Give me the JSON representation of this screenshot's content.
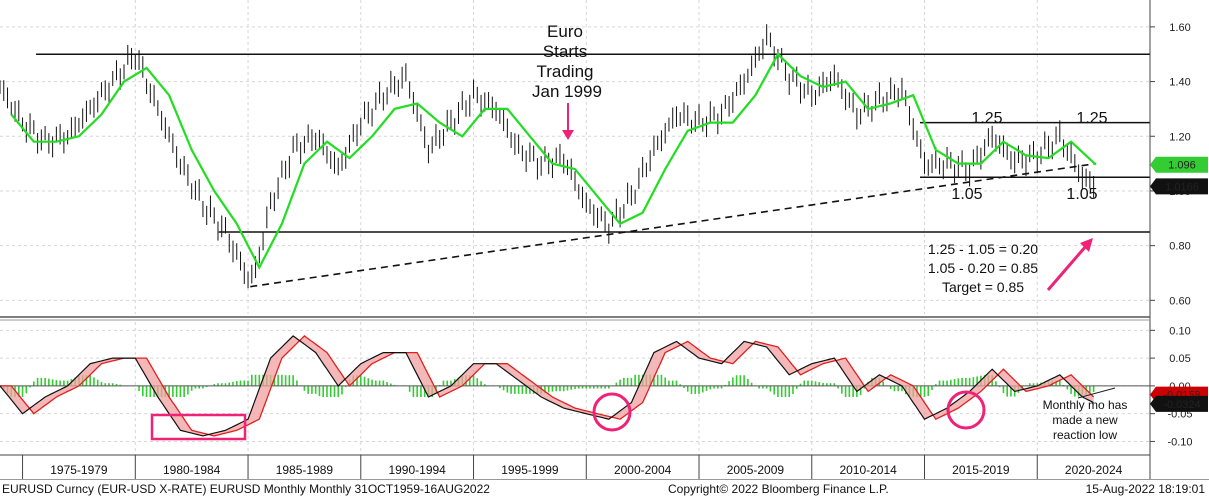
{
  "chart_data": [
    {
      "type": "line",
      "name": "EURUSD monthly bars with moving average",
      "ylim": [
        0.55,
        1.68
      ],
      "ytick_labels": [
        "0.60",
        "0.80",
        "1.00",
        "1.20",
        "1.40",
        "1.60"
      ],
      "x_period_labels": [
        "1975-1979",
        "1980-1984",
        "1985-1989",
        "1990-1994",
        "1995-1999",
        "2000-2004",
        "2005-2009",
        "2010-2014",
        "2015-2019",
        "2020-2024"
      ],
      "series_price": [
        [
          1974,
          1.38
        ],
        [
          1975,
          1.25
        ],
        [
          1976,
          1.18
        ],
        [
          1977,
          1.2
        ],
        [
          1978,
          1.3
        ],
        [
          1979,
          1.4
        ],
        [
          1980,
          1.5
        ],
        [
          1981,
          1.3
        ],
        [
          1982,
          1.1
        ],
        [
          1983,
          0.95
        ],
        [
          1984,
          0.85
        ],
        [
          1985,
          0.68
        ],
        [
          1985.3,
          0.7
        ],
        [
          1986,
          0.95
        ],
        [
          1987,
          1.15
        ],
        [
          1988,
          1.2
        ],
        [
          1989,
          1.08
        ],
        [
          1990,
          1.25
        ],
        [
          1991,
          1.35
        ],
        [
          1992,
          1.42
        ],
        [
          1993,
          1.15
        ],
        [
          1994,
          1.25
        ],
        [
          1995,
          1.35
        ],
        [
          1996,
          1.3
        ],
        [
          1997,
          1.15
        ],
        [
          1998,
          1.1
        ],
        [
          1999,
          1.12
        ],
        [
          2000,
          0.95
        ],
        [
          2001,
          0.87
        ],
        [
          2002,
          0.98
        ],
        [
          2003,
          1.15
        ],
        [
          2004,
          1.28
        ],
        [
          2005,
          1.25
        ],
        [
          2006,
          1.28
        ],
        [
          2007,
          1.4
        ],
        [
          2008,
          1.56
        ],
        [
          2009,
          1.42
        ],
        [
          2010,
          1.35
        ],
        [
          2011,
          1.42
        ],
        [
          2012,
          1.28
        ],
        [
          2013,
          1.33
        ],
        [
          2014,
          1.37
        ],
        [
          2015,
          1.1
        ],
        [
          2016,
          1.1
        ],
        [
          2017,
          1.08
        ],
        [
          2018,
          1.2
        ],
        [
          2019,
          1.11
        ],
        [
          2020,
          1.13
        ],
        [
          2021,
          1.2
        ],
        [
          2022,
          1.05
        ],
        [
          2022.6,
          1.02
        ]
      ],
      "series_ma": [
        [
          1974.5,
          1.28
        ],
        [
          1975.5,
          1.18
        ],
        [
          1976.5,
          1.18
        ],
        [
          1977.5,
          1.2
        ],
        [
          1978.5,
          1.28
        ],
        [
          1979.5,
          1.4
        ],
        [
          1980.5,
          1.45
        ],
        [
          1981.5,
          1.35
        ],
        [
          1982.5,
          1.15
        ],
        [
          1983.5,
          1.0
        ],
        [
          1984.5,
          0.88
        ],
        [
          1985.5,
          0.72
        ],
        [
          1986.5,
          0.88
        ],
        [
          1987.5,
          1.1
        ],
        [
          1988.5,
          1.18
        ],
        [
          1989.5,
          1.12
        ],
        [
          1990.5,
          1.2
        ],
        [
          1991.5,
          1.3
        ],
        [
          1992.5,
          1.32
        ],
        [
          1993.5,
          1.25
        ],
        [
          1994.5,
          1.2
        ],
        [
          1995.5,
          1.3
        ],
        [
          1996.5,
          1.3
        ],
        [
          1997.5,
          1.2
        ],
        [
          1998.5,
          1.1
        ],
        [
          1999.5,
          1.08
        ],
        [
          2000.5,
          0.98
        ],
        [
          2001.5,
          0.88
        ],
        [
          2002.5,
          0.92
        ],
        [
          2003.5,
          1.08
        ],
        [
          2004.5,
          1.22
        ],
        [
          2005.5,
          1.25
        ],
        [
          2006.5,
          1.25
        ],
        [
          2007.5,
          1.35
        ],
        [
          2008.5,
          1.5
        ],
        [
          2009.5,
          1.42
        ],
        [
          2010.5,
          1.38
        ],
        [
          2011.5,
          1.4
        ],
        [
          2012.5,
          1.3
        ],
        [
          2013.5,
          1.32
        ],
        [
          2014.5,
          1.35
        ],
        [
          2015.5,
          1.15
        ],
        [
          2016.5,
          1.1
        ],
        [
          2017.5,
          1.1
        ],
        [
          2018.5,
          1.18
        ],
        [
          2019.5,
          1.13
        ],
        [
          2020.5,
          1.12
        ],
        [
          2021.5,
          1.18
        ],
        [
          2022.6,
          1.096
        ]
      ],
      "levels": [
        1.5,
        1.25,
        1.05,
        0.85
      ],
      "support_trendline": [
        [
          1985.1,
          0.65
        ],
        [
          2022.6,
          1.1
        ]
      ],
      "last_price_tags": [
        {
          "value": 1.096,
          "label": "1.096",
          "color": "#33cc33"
        },
        {
          "value": 1.0166,
          "label": "1.0166",
          "color": "#111111"
        }
      ],
      "annotations": {
        "euro_line1": "Euro",
        "euro_line2": "Starts",
        "euro_line3": "Trading",
        "euro_line4": "Jan 1999",
        "level_125_a": "1.25",
        "level_125_b": "1.25",
        "level_105_a": "1.05",
        "level_105_b": "1.05",
        "calc_line1": "1.25  -  1.05 = 0.20",
        "calc_line2": "1.05  -  0.20 = 0.85",
        "calc_line3": "Target = 0.85"
      }
    },
    {
      "type": "line",
      "name": "Monthly momentum oscillator",
      "ylim": [
        -0.11,
        0.115
      ],
      "ytick_labels": [
        "0.10",
        "0.05",
        "0.00",
        "-0.05",
        "-0.10"
      ],
      "series_mo": [
        [
          1974,
          0.0
        ],
        [
          1975,
          -0.05
        ],
        [
          1976,
          -0.02
        ],
        [
          1977,
          0.0
        ],
        [
          1978,
          0.04
        ],
        [
          1979,
          0.05
        ],
        [
          1980,
          0.05
        ],
        [
          1981,
          -0.02
        ],
        [
          1982,
          -0.08
        ],
        [
          1983,
          -0.09
        ],
        [
          1984,
          -0.08
        ],
        [
          1985,
          -0.06
        ],
        [
          1986,
          0.05
        ],
        [
          1987,
          0.09
        ],
        [
          1988,
          0.06
        ],
        [
          1989,
          0.0
        ],
        [
          1990,
          0.04
        ],
        [
          1991,
          0.06
        ],
        [
          1992,
          0.06
        ],
        [
          1993,
          -0.02
        ],
        [
          1994,
          0.0
        ],
        [
          1995,
          0.04
        ],
        [
          1996,
          0.04
        ],
        [
          1997,
          0.01
        ],
        [
          1998,
          -0.02
        ],
        [
          1999,
          -0.04
        ],
        [
          2000,
          -0.05
        ],
        [
          2001,
          -0.06
        ],
        [
          2002,
          -0.03
        ],
        [
          2003,
          0.06
        ],
        [
          2004,
          0.08
        ],
        [
          2005,
          0.05
        ],
        [
          2006,
          0.04
        ],
        [
          2007,
          0.08
        ],
        [
          2008,
          0.07
        ],
        [
          2009,
          0.02
        ],
        [
          2010,
          0.04
        ],
        [
          2011,
          0.05
        ],
        [
          2012,
          -0.01
        ],
        [
          2013,
          0.02
        ],
        [
          2014,
          0.0
        ],
        [
          2015,
          -0.06
        ],
        [
          2016,
          -0.04
        ],
        [
          2017,
          -0.01
        ],
        [
          2018,
          0.03
        ],
        [
          2019,
          -0.01
        ],
        [
          2020,
          0.0
        ],
        [
          2021,
          0.02
        ],
        [
          2022,
          -0.02
        ],
        [
          2022.6,
          -0.032
        ]
      ],
      "last_price_tags": [
        {
          "value": -0.0158,
          "label": "-0.0158",
          "color": "#cc0000"
        },
        {
          "value": -0.0324,
          "label": "-0.0324",
          "color": "#111111"
        }
      ],
      "annotations": {
        "note_line1": "Monthly mo has",
        "note_line2": "made a new",
        "note_line3": "reaction low"
      }
    }
  ],
  "footer": {
    "left": "EURUSD Curncy (EUR-USD X-RATE) EURUSD Monthly  Monthly 31OCT1959-16AUG2022",
    "center": "Copyright© 2022 Bloomberg Finance L.P.",
    "right": "15-Aug-2022  18:19:01"
  }
}
